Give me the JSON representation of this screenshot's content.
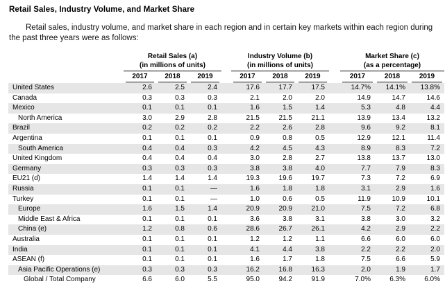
{
  "page": {
    "title": "Retail Sales, Industry Volume, and Market Share",
    "intro": "Retail sales, industry volume, and market share in each region and in certain key markets within each region during the past three years were as follows:"
  },
  "theme": {
    "row_shade": "#e6e6e6",
    "text_color": "#000000"
  },
  "table": {
    "groups": [
      {
        "label": "Retail Sales (a)",
        "sublabel": "(in millions of units)"
      },
      {
        "label": "Industry Volume (b)",
        "sublabel": "(in millions of units)"
      },
      {
        "label": "Market Share (c)",
        "sublabel": "(as a percentage)"
      }
    ],
    "years": [
      "2017",
      "2018",
      "2019"
    ],
    "rows": [
      {
        "label": "United States",
        "indent": 0,
        "shaded": true,
        "retail": [
          "2.6",
          "2.5",
          "2.4"
        ],
        "volume": [
          "17.6",
          "17.7",
          "17.5"
        ],
        "share": [
          "14.7%",
          "14.1%",
          "13.8%"
        ]
      },
      {
        "label": "Canada",
        "indent": 0,
        "shaded": false,
        "retail": [
          "0.3",
          "0.3",
          "0.3"
        ],
        "volume": [
          "2.1",
          "2.0",
          "2.0"
        ],
        "share": [
          "14.9",
          "14.7",
          "14.6"
        ]
      },
      {
        "label": "Mexico",
        "indent": 0,
        "shaded": true,
        "retail": [
          "0.1",
          "0.1",
          "0.1"
        ],
        "volume": [
          "1.6",
          "1.5",
          "1.4"
        ],
        "share": [
          "5.3",
          "4.8",
          "4.4"
        ]
      },
      {
        "label": "North America",
        "indent": 1,
        "shaded": false,
        "retail": [
          "3.0",
          "2.9",
          "2.8"
        ],
        "volume": [
          "21.5",
          "21.5",
          "21.1"
        ],
        "share": [
          "13.9",
          "13.4",
          "13.2"
        ]
      },
      {
        "label": "Brazil",
        "indent": 0,
        "shaded": true,
        "retail": [
          "0.2",
          "0.2",
          "0.2"
        ],
        "volume": [
          "2.2",
          "2.6",
          "2.8"
        ],
        "share": [
          "9.6",
          "9.2",
          "8.1"
        ]
      },
      {
        "label": "Argentina",
        "indent": 0,
        "shaded": false,
        "retail": [
          "0.1",
          "0.1",
          "0.1"
        ],
        "volume": [
          "0.9",
          "0.8",
          "0.5"
        ],
        "share": [
          "12.9",
          "12.1",
          "11.4"
        ]
      },
      {
        "label": "South America",
        "indent": 1,
        "shaded": true,
        "retail": [
          "0.4",
          "0.4",
          "0.3"
        ],
        "volume": [
          "4.2",
          "4.5",
          "4.3"
        ],
        "share": [
          "8.9",
          "8.3",
          "7.2"
        ]
      },
      {
        "label": "United Kingdom",
        "indent": 0,
        "shaded": false,
        "retail": [
          "0.4",
          "0.4",
          "0.4"
        ],
        "volume": [
          "3.0",
          "2.8",
          "2.7"
        ],
        "share": [
          "13.8",
          "13.7",
          "13.0"
        ]
      },
      {
        "label": "Germany",
        "indent": 0,
        "shaded": true,
        "retail": [
          "0.3",
          "0.3",
          "0.3"
        ],
        "volume": [
          "3.8",
          "3.8",
          "4.0"
        ],
        "share": [
          "7.7",
          "7.9",
          "8.3"
        ]
      },
      {
        "label": "EU21 (d)",
        "indent": 0,
        "shaded": false,
        "retail": [
          "1.4",
          "1.4",
          "1.4"
        ],
        "volume": [
          "19.3",
          "19.6",
          "19.7"
        ],
        "share": [
          "7.3",
          "7.2",
          "6.9"
        ]
      },
      {
        "label": "Russia",
        "indent": 0,
        "shaded": true,
        "retail": [
          "0.1",
          "0.1",
          "—"
        ],
        "volume": [
          "1.6",
          "1.8",
          "1.8"
        ],
        "share": [
          "3.1",
          "2.9",
          "1.6"
        ]
      },
      {
        "label": "Turkey",
        "indent": 0,
        "shaded": false,
        "retail": [
          "0.1",
          "0.1",
          "—"
        ],
        "volume": [
          "1.0",
          "0.6",
          "0.5"
        ],
        "share": [
          "11.9",
          "10.9",
          "10.1"
        ]
      },
      {
        "label": "Europe",
        "indent": 1,
        "shaded": true,
        "retail": [
          "1.6",
          "1.5",
          "1.4"
        ],
        "volume": [
          "20.9",
          "20.9",
          "21.0"
        ],
        "share": [
          "7.5",
          "7.2",
          "6.8"
        ]
      },
      {
        "label": "Middle East & Africa",
        "indent": 1,
        "shaded": false,
        "retail": [
          "0.1",
          "0.1",
          "0.1"
        ],
        "volume": [
          "3.6",
          "3.8",
          "3.1"
        ],
        "share": [
          "3.8",
          "3.0",
          "3.2"
        ]
      },
      {
        "label": "China (e)",
        "indent": 1,
        "shaded": true,
        "retail": [
          "1.2",
          "0.8",
          "0.6"
        ],
        "volume": [
          "28.6",
          "26.7",
          "26.1"
        ],
        "share": [
          "4.2",
          "2.9",
          "2.2"
        ]
      },
      {
        "label": "Australia",
        "indent": 0,
        "shaded": false,
        "retail": [
          "0.1",
          "0.1",
          "0.1"
        ],
        "volume": [
          "1.2",
          "1.2",
          "1.1"
        ],
        "share": [
          "6.6",
          "6.0",
          "6.0"
        ]
      },
      {
        "label": "India",
        "indent": 0,
        "shaded": true,
        "retail": [
          "0.1",
          "0.1",
          "0.1"
        ],
        "volume": [
          "4.1",
          "4.4",
          "3.8"
        ],
        "share": [
          "2.2",
          "2.2",
          "2.0"
        ]
      },
      {
        "label": "ASEAN (f)",
        "indent": 0,
        "shaded": false,
        "retail": [
          "0.1",
          "0.1",
          "0.1"
        ],
        "volume": [
          "1.6",
          "1.7",
          "1.8"
        ],
        "share": [
          "7.5",
          "6.6",
          "5.9"
        ]
      },
      {
        "label": "Asia Pacific Operations (e)",
        "indent": 1,
        "shaded": true,
        "retail": [
          "0.3",
          "0.3",
          "0.3"
        ],
        "volume": [
          "16.2",
          "16.8",
          "16.3"
        ],
        "share": [
          "2.0",
          "1.9",
          "1.7"
        ]
      },
      {
        "label": "Global / Total Company",
        "indent": 2,
        "shaded": false,
        "retail": [
          "6.6",
          "6.0",
          "5.5"
        ],
        "volume": [
          "95.0",
          "94.2",
          "91.9"
        ],
        "share": [
          "7.0%",
          "6.3%",
          "6.0%"
        ]
      }
    ]
  }
}
